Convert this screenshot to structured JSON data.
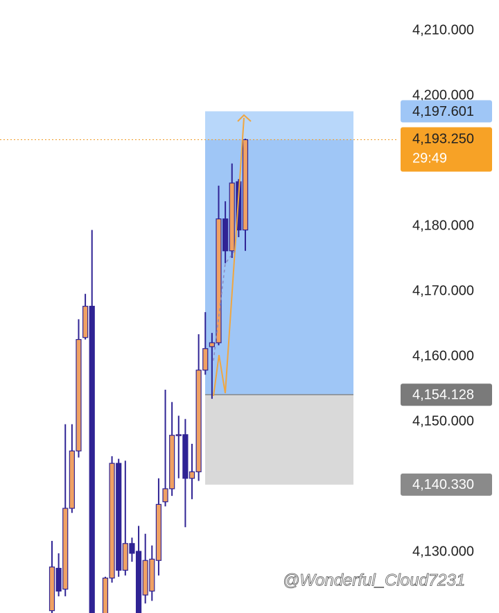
{
  "chart_data": {
    "type": "candlestick",
    "ylim": [
      4120.64,
      4214.68
    ],
    "yticks": [
      {
        "value": 4210,
        "label": "4,210.000"
      },
      {
        "value": 4200,
        "label": "4,200.000"
      },
      {
        "value": 4180,
        "label": "4,180.000"
      },
      {
        "value": 4170,
        "label": "4,170.000"
      },
      {
        "value": 4160,
        "label": "4,160.000"
      },
      {
        "value": 4150,
        "label": "4,150.000"
      },
      {
        "value": 4130,
        "label": "4,130.000"
      }
    ],
    "up_color": "#f0a163",
    "down_color": "#2f2394",
    "open": [
      4121.0,
      4127.5,
      4124.3,
      4136.7,
      4145.5,
      4162.9,
      4167.7,
      null,
      4119.0,
      4126.0,
      4143.6,
      4127.2,
      4131.3,
      4130.1,
      4123.4,
      4124.0,
      4128.7,
      4137.7,
      4139.7,
      4147.9,
      4148.0,
      4141.3,
      4142.3,
      4157.9,
      4161.5,
      4162.1,
      4181.1,
      4176.2,
      4186.8,
      4179.4
    ],
    "high": [
      4131.7,
      4129.8,
      4149.6,
      4149.6,
      4165.7,
      4169.6,
      4179.4,
      null,
      4126.2,
      4144.7,
      4144.3,
      4144.0,
      4132.2,
      4134.0,
      4132.8,
      4131.0,
      4141.3,
      4154.9,
      4153.0,
      4150.9,
      4150.4,
      4146.6,
      4163.4,
      4166.8,
      4163.6,
      4186.2,
      4183.8,
      4189.6,
      4187.2,
      4193.4
    ],
    "low": [
      4119.0,
      4123.2,
      4123.2,
      4136.0,
      4144.5,
      4162.6,
      4118.0,
      null,
      4118.0,
      4125.3,
      4126.2,
      4126.4,
      4128.5,
      4118.0,
      4122.1,
      4122.5,
      4126.4,
      4137.0,
      4138.6,
      4141.3,
      4133.8,
      4138.1,
      4140.9,
      4157.2,
      4153.5,
      4161.7,
      4174.3,
      4175.1,
      4178.3,
      4176.2
    ],
    "close": [
      4127.7,
      4124.0,
      4136.7,
      4145.5,
      4162.6,
      4167.7,
      4119.0,
      null,
      4126.0,
      4143.6,
      4127.2,
      4131.3,
      4129.8,
      4119.0,
      4128.7,
      4128.9,
      4137.3,
      4139.7,
      4147.9,
      4148.0,
      4141.3,
      4142.3,
      4157.9,
      4161.2,
      4162.1,
      4181.1,
      4176.2,
      4186.6,
      4179.4,
      4193.25
    ],
    "position": {
      "target": {
        "value": 4197.601,
        "label": "4,197.601"
      },
      "entry": {
        "value": 4154.128,
        "label": "4,154.128"
      },
      "stop": {
        "value": 4140.33,
        "label": "4,140.330"
      }
    },
    "last_price": {
      "value": 4193.25,
      "label": "4,193.250",
      "countdown": "29:49"
    },
    "watermark": "@Wonderful_Cloud7231"
  }
}
